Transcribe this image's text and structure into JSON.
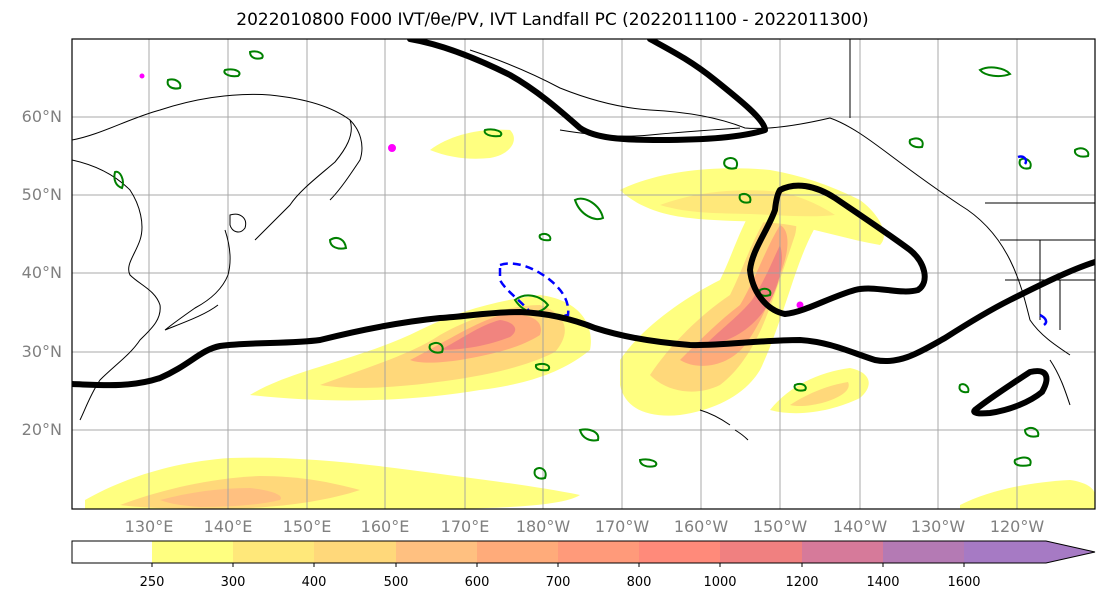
{
  "title": "2022010800 F000 IVT/θe/PV, IVT Landfall PC (2022011100 - 2022011300)",
  "map": {
    "lat_labels": [
      "60°N",
      "50°N",
      "40°N",
      "30°N",
      "20°N"
    ],
    "lon_labels": [
      "130°E",
      "140°E",
      "150°E",
      "160°E",
      "170°E",
      "180°W",
      "170°W",
      "160°W",
      "150°W",
      "140°W",
      "130°W",
      "120°W"
    ],
    "colors": {
      "ivt_shading": [
        "#ffff80",
        "#ffe87a",
        "#ffd87a",
        "#ffc080",
        "#ffab7a",
        "#ff9a7a",
        "#ff8a7a",
        "#f08080",
        "#d67a9a",
        "#b47ab4",
        "#a67ac4"
      ],
      "landfall_pc_contour": "#000000",
      "theta_e_contour": "#008000",
      "pv_contour": "#0000ff",
      "misc_contour": "#ff00ff",
      "coastline": "#000000",
      "grid": "#a0a0a0"
    }
  },
  "colorbar": {
    "levels": [
      "250",
      "300",
      "400",
      "500",
      "600",
      "700",
      "800",
      "1000",
      "1200",
      "1400",
      "1600"
    ],
    "colors": [
      "#ffff80",
      "#ffe87a",
      "#ffd87a",
      "#ffc080",
      "#ffab7a",
      "#ff9a7a",
      "#ff8a7a",
      "#f08080",
      "#d67a9a",
      "#b47ab4",
      "#a67ac4"
    ]
  }
}
